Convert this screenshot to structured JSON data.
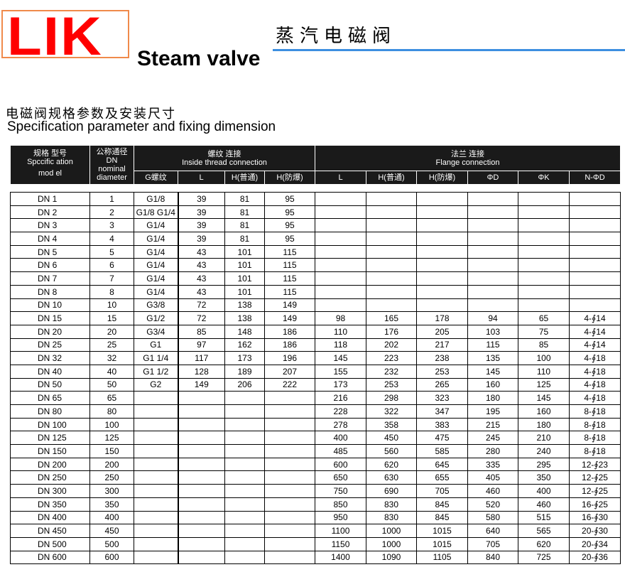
{
  "brand": {
    "logo_text": "LIK",
    "en_title": "Steam valve",
    "cn_title": "蒸汽电磁阀"
  },
  "section": {
    "cn": "电磁阀规格参数及安装尺寸",
    "en": "Specification parameter and fixing dimension"
  },
  "header": {
    "model": [
      "规格 型号",
      "Spccific ation",
      "mod el"
    ],
    "dn": [
      "公称通径",
      "DN",
      "nominal",
      "diameter"
    ],
    "thread_group": [
      "螺纹 连接",
      "Inside thread connection"
    ],
    "flange_group": [
      "法兰 连接",
      "Flange connection"
    ],
    "thread_cols": [
      "G螺纹",
      "L",
      "H(普通)",
      "H(防爆)"
    ],
    "flange_cols": [
      "L",
      "H(普通)",
      "H(防爆)",
      "ΦD",
      "ΦK",
      "N-ΦD"
    ]
  },
  "rows": [
    [
      "DN 1",
      "1",
      "G1/8",
      "39",
      "81",
      "95",
      "",
      "",
      "",
      "",
      "",
      ""
    ],
    [
      "DN 2",
      "2",
      "G1/8 G1/4",
      "39",
      "81",
      "95",
      "",
      "",
      "",
      "",
      "",
      ""
    ],
    [
      "DN 3",
      "3",
      "G1/4",
      "39",
      "81",
      "95",
      "",
      "",
      "",
      "",
      "",
      ""
    ],
    [
      "DN 4",
      "4",
      "G1/4",
      "39",
      "81",
      "95",
      "",
      "",
      "",
      "",
      "",
      ""
    ],
    [
      "DN 5",
      "5",
      "G1/4",
      "43",
      "101",
      "115",
      "",
      "",
      "",
      "",
      "",
      ""
    ],
    [
      "DN 6",
      "6",
      "G1/4",
      "43",
      "101",
      "115",
      "",
      "",
      "",
      "",
      "",
      ""
    ],
    [
      "DN 7",
      "7",
      "G1/4",
      "43",
      "101",
      "115",
      "",
      "",
      "",
      "",
      "",
      ""
    ],
    [
      "DN 8",
      "8",
      "G1/4",
      "43",
      "101",
      "115",
      "",
      "",
      "",
      "",
      "",
      ""
    ],
    [
      "DN 10",
      "10",
      "G3/8",
      "72",
      "138",
      "149",
      "",
      "",
      "",
      "",
      "",
      ""
    ],
    [
      "DN 15",
      "15",
      "G1/2",
      "72",
      "138",
      "149",
      "98",
      "165",
      "178",
      "94",
      "65",
      "4-∮14"
    ],
    [
      "DN 20",
      "20",
      "G3/4",
      "85",
      "148",
      "186",
      "110",
      "176",
      "205",
      "103",
      "75",
      "4-∮14"
    ],
    [
      "DN 25",
      "25",
      "G1",
      "97",
      "162",
      "186",
      "118",
      "202",
      "217",
      "115",
      "85",
      "4-∮14"
    ],
    [
      "DN 32",
      "32",
      "G1 1/4",
      "117",
      "173",
      "196",
      "145",
      "223",
      "238",
      "135",
      "100",
      "4-∮18"
    ],
    [
      "DN 40",
      "40",
      "G1 1/2",
      "128",
      "189",
      "207",
      "155",
      "232",
      "253",
      "145",
      "110",
      "4-∮18"
    ],
    [
      "DN 50",
      "50",
      "G2",
      "149",
      "206",
      "222",
      "173",
      "253",
      "265",
      "160",
      "125",
      "4-∮18"
    ],
    [
      "DN 65",
      "65",
      "",
      "",
      "",
      "",
      "216",
      "298",
      "323",
      "180",
      "145",
      "4-∮18"
    ],
    [
      "DN 80",
      "80",
      "",
      "",
      "",
      "",
      "228",
      "322",
      "347",
      "195",
      "160",
      "8-∮18"
    ],
    [
      "DN 100",
      "100",
      "",
      "",
      "",
      "",
      "278",
      "358",
      "383",
      "215",
      "180",
      "8-∮18"
    ],
    [
      "DN 125",
      "125",
      "",
      "",
      "",
      "",
      "400",
      "450",
      "475",
      "245",
      "210",
      "8-∮18"
    ],
    [
      "DN 150",
      "150",
      "",
      "",
      "",
      "",
      "485",
      "560",
      "585",
      "280",
      "240",
      "8-∮18"
    ],
    [
      "DN 200",
      "200",
      "",
      "",
      "",
      "",
      "600",
      "620",
      "645",
      "335",
      "295",
      "12-∮23"
    ],
    [
      "DN 250",
      "250",
      "",
      "",
      "",
      "",
      "650",
      "630",
      "655",
      "405",
      "350",
      "12-∮25"
    ],
    [
      "DN 300",
      "300",
      "",
      "",
      "",
      "",
      "750",
      "690",
      "705",
      "460",
      "400",
      "12-∮25"
    ],
    [
      "DN 350",
      "350",
      "",
      "",
      "",
      "",
      "850",
      "830",
      "845",
      "520",
      "460",
      "16-∮25"
    ],
    [
      "DN 400",
      "400",
      "",
      "",
      "",
      "",
      "950",
      "830",
      "845",
      "580",
      "515",
      "16-∮30"
    ],
    [
      "DN 450",
      "450",
      "",
      "",
      "",
      "",
      "1100",
      "1000",
      "1015",
      "640",
      "565",
      "20-∮30"
    ],
    [
      "DN 500",
      "500",
      "",
      "",
      "",
      "",
      "1150",
      "1000",
      "1015",
      "705",
      "620",
      "20-∮34"
    ],
    [
      "DN 600",
      "600",
      "",
      "",
      "",
      "",
      "1400",
      "1090",
      "1105",
      "840",
      "725",
      "20-∮36"
    ]
  ]
}
